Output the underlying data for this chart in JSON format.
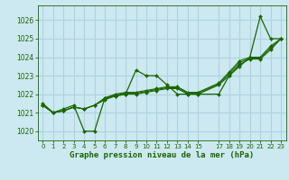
{
  "xlabel": "Graphe pression niveau de la mer (hPa)",
  "bg_color": "#cce8f0",
  "grid_color": "#aad4e0",
  "line_color": "#1a6600",
  "ylim": [
    1019.5,
    1026.8
  ],
  "xlim": [
    -0.5,
    23.5
  ],
  "yticks": [
    1020,
    1021,
    1022,
    1023,
    1024,
    1025,
    1026
  ],
  "xticks": [
    0,
    1,
    2,
    3,
    4,
    5,
    6,
    7,
    8,
    9,
    10,
    11,
    12,
    13,
    14,
    15,
    17,
    18,
    19,
    20,
    21,
    22,
    23
  ],
  "series": [
    {
      "x": [
        0,
        1,
        2,
        3,
        4,
        5,
        6,
        7,
        8,
        9,
        10,
        11,
        12,
        13,
        14,
        15,
        17,
        18,
        19,
        20,
        21,
        22,
        23
      ],
      "y": [
        1021.5,
        1021.0,
        1021.2,
        1021.4,
        1020.0,
        1020.0,
        1021.8,
        1021.9,
        1022.0,
        1023.3,
        1023.0,
        1023.0,
        1022.5,
        1022.0,
        1022.0,
        1022.0,
        1022.0,
        1023.0,
        1023.5,
        1024.0,
        1026.2,
        1025.0,
        1025.0
      ],
      "marker": true,
      "lw": 0.9
    },
    {
      "x": [
        0,
        1,
        2,
        3,
        4,
        5,
        6,
        7,
        8,
        9,
        10,
        11,
        12,
        13,
        14,
        15,
        17,
        18,
        19,
        20,
        21,
        22,
        23
      ],
      "y": [
        1021.4,
        1021.0,
        1021.1,
        1021.3,
        1021.2,
        1021.4,
        1021.8,
        1022.0,
        1022.1,
        1022.1,
        1022.2,
        1022.3,
        1022.4,
        1022.4,
        1022.1,
        1022.1,
        1022.6,
        1023.2,
        1023.8,
        1024.0,
        1024.0,
        1024.6,
        1025.0
      ],
      "marker": true,
      "lw": 0.8
    },
    {
      "x": [
        0,
        1,
        2,
        3,
        4,
        5,
        6,
        7,
        8,
        9,
        10,
        11,
        12,
        13,
        14,
        15,
        17,
        18,
        19,
        20,
        21,
        22,
        23
      ],
      "y": [
        1021.4,
        1021.0,
        1021.1,
        1021.3,
        1021.2,
        1021.4,
        1021.75,
        1021.95,
        1022.05,
        1022.05,
        1022.15,
        1022.25,
        1022.35,
        1022.35,
        1022.05,
        1022.05,
        1022.55,
        1023.1,
        1023.7,
        1023.95,
        1023.95,
        1024.5,
        1025.0
      ],
      "marker": true,
      "lw": 0.8
    },
    {
      "x": [
        0,
        1,
        2,
        3,
        4,
        5,
        6,
        7,
        8,
        9,
        10,
        11,
        12,
        13,
        14,
        15,
        17,
        18,
        19,
        20,
        21,
        22,
        23
      ],
      "y": [
        1021.4,
        1021.0,
        1021.1,
        1021.3,
        1021.2,
        1021.4,
        1021.7,
        1021.9,
        1022.0,
        1022.0,
        1022.1,
        1022.2,
        1022.3,
        1022.3,
        1022.0,
        1022.0,
        1022.5,
        1023.0,
        1023.6,
        1023.9,
        1023.9,
        1024.4,
        1025.0
      ],
      "marker": true,
      "lw": 0.8
    }
  ]
}
